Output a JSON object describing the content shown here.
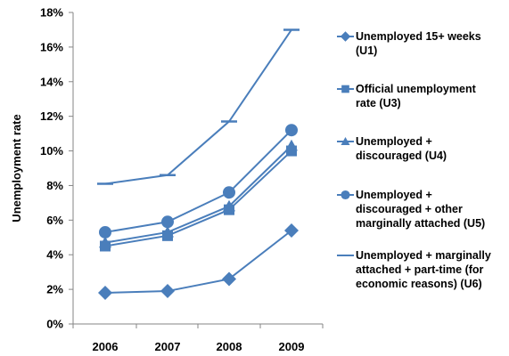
{
  "chart_data": {
    "type": "line",
    "title": "",
    "xlabel": "",
    "ylabel": "Unemployment rate",
    "x": [
      "2006",
      "2007",
      "2008",
      "2009"
    ],
    "ylim": [
      0,
      18
    ],
    "yticks": [
      "0%",
      "2%",
      "4%",
      "6%",
      "8%",
      "10%",
      "12%",
      "14%",
      "16%",
      "18%"
    ],
    "grid": false,
    "legend": "right",
    "color": "#4a7ebb",
    "series": [
      {
        "name": "Unemployed 15+ weeks (U1)",
        "marker": "diamond",
        "values": [
          1.8,
          1.9,
          2.6,
          5.4
        ]
      },
      {
        "name": "Official unemployment rate (U3)",
        "marker": "square",
        "values": [
          4.5,
          5.1,
          6.6,
          10.0
        ]
      },
      {
        "name": "Unemployed + discouraged (U4)",
        "marker": "triangle",
        "values": [
          4.7,
          5.3,
          6.8,
          10.3
        ]
      },
      {
        "name": "Unemployed + discouraged + other marginally attached (U5)",
        "marker": "circle",
        "values": [
          5.3,
          5.9,
          7.6,
          11.2
        ]
      },
      {
        "name": "Unemployed + marginally attached + part-time (for economic reasons) (U6)",
        "marker": "dash",
        "values": [
          8.1,
          8.6,
          11.7,
          17.0
        ]
      }
    ]
  }
}
